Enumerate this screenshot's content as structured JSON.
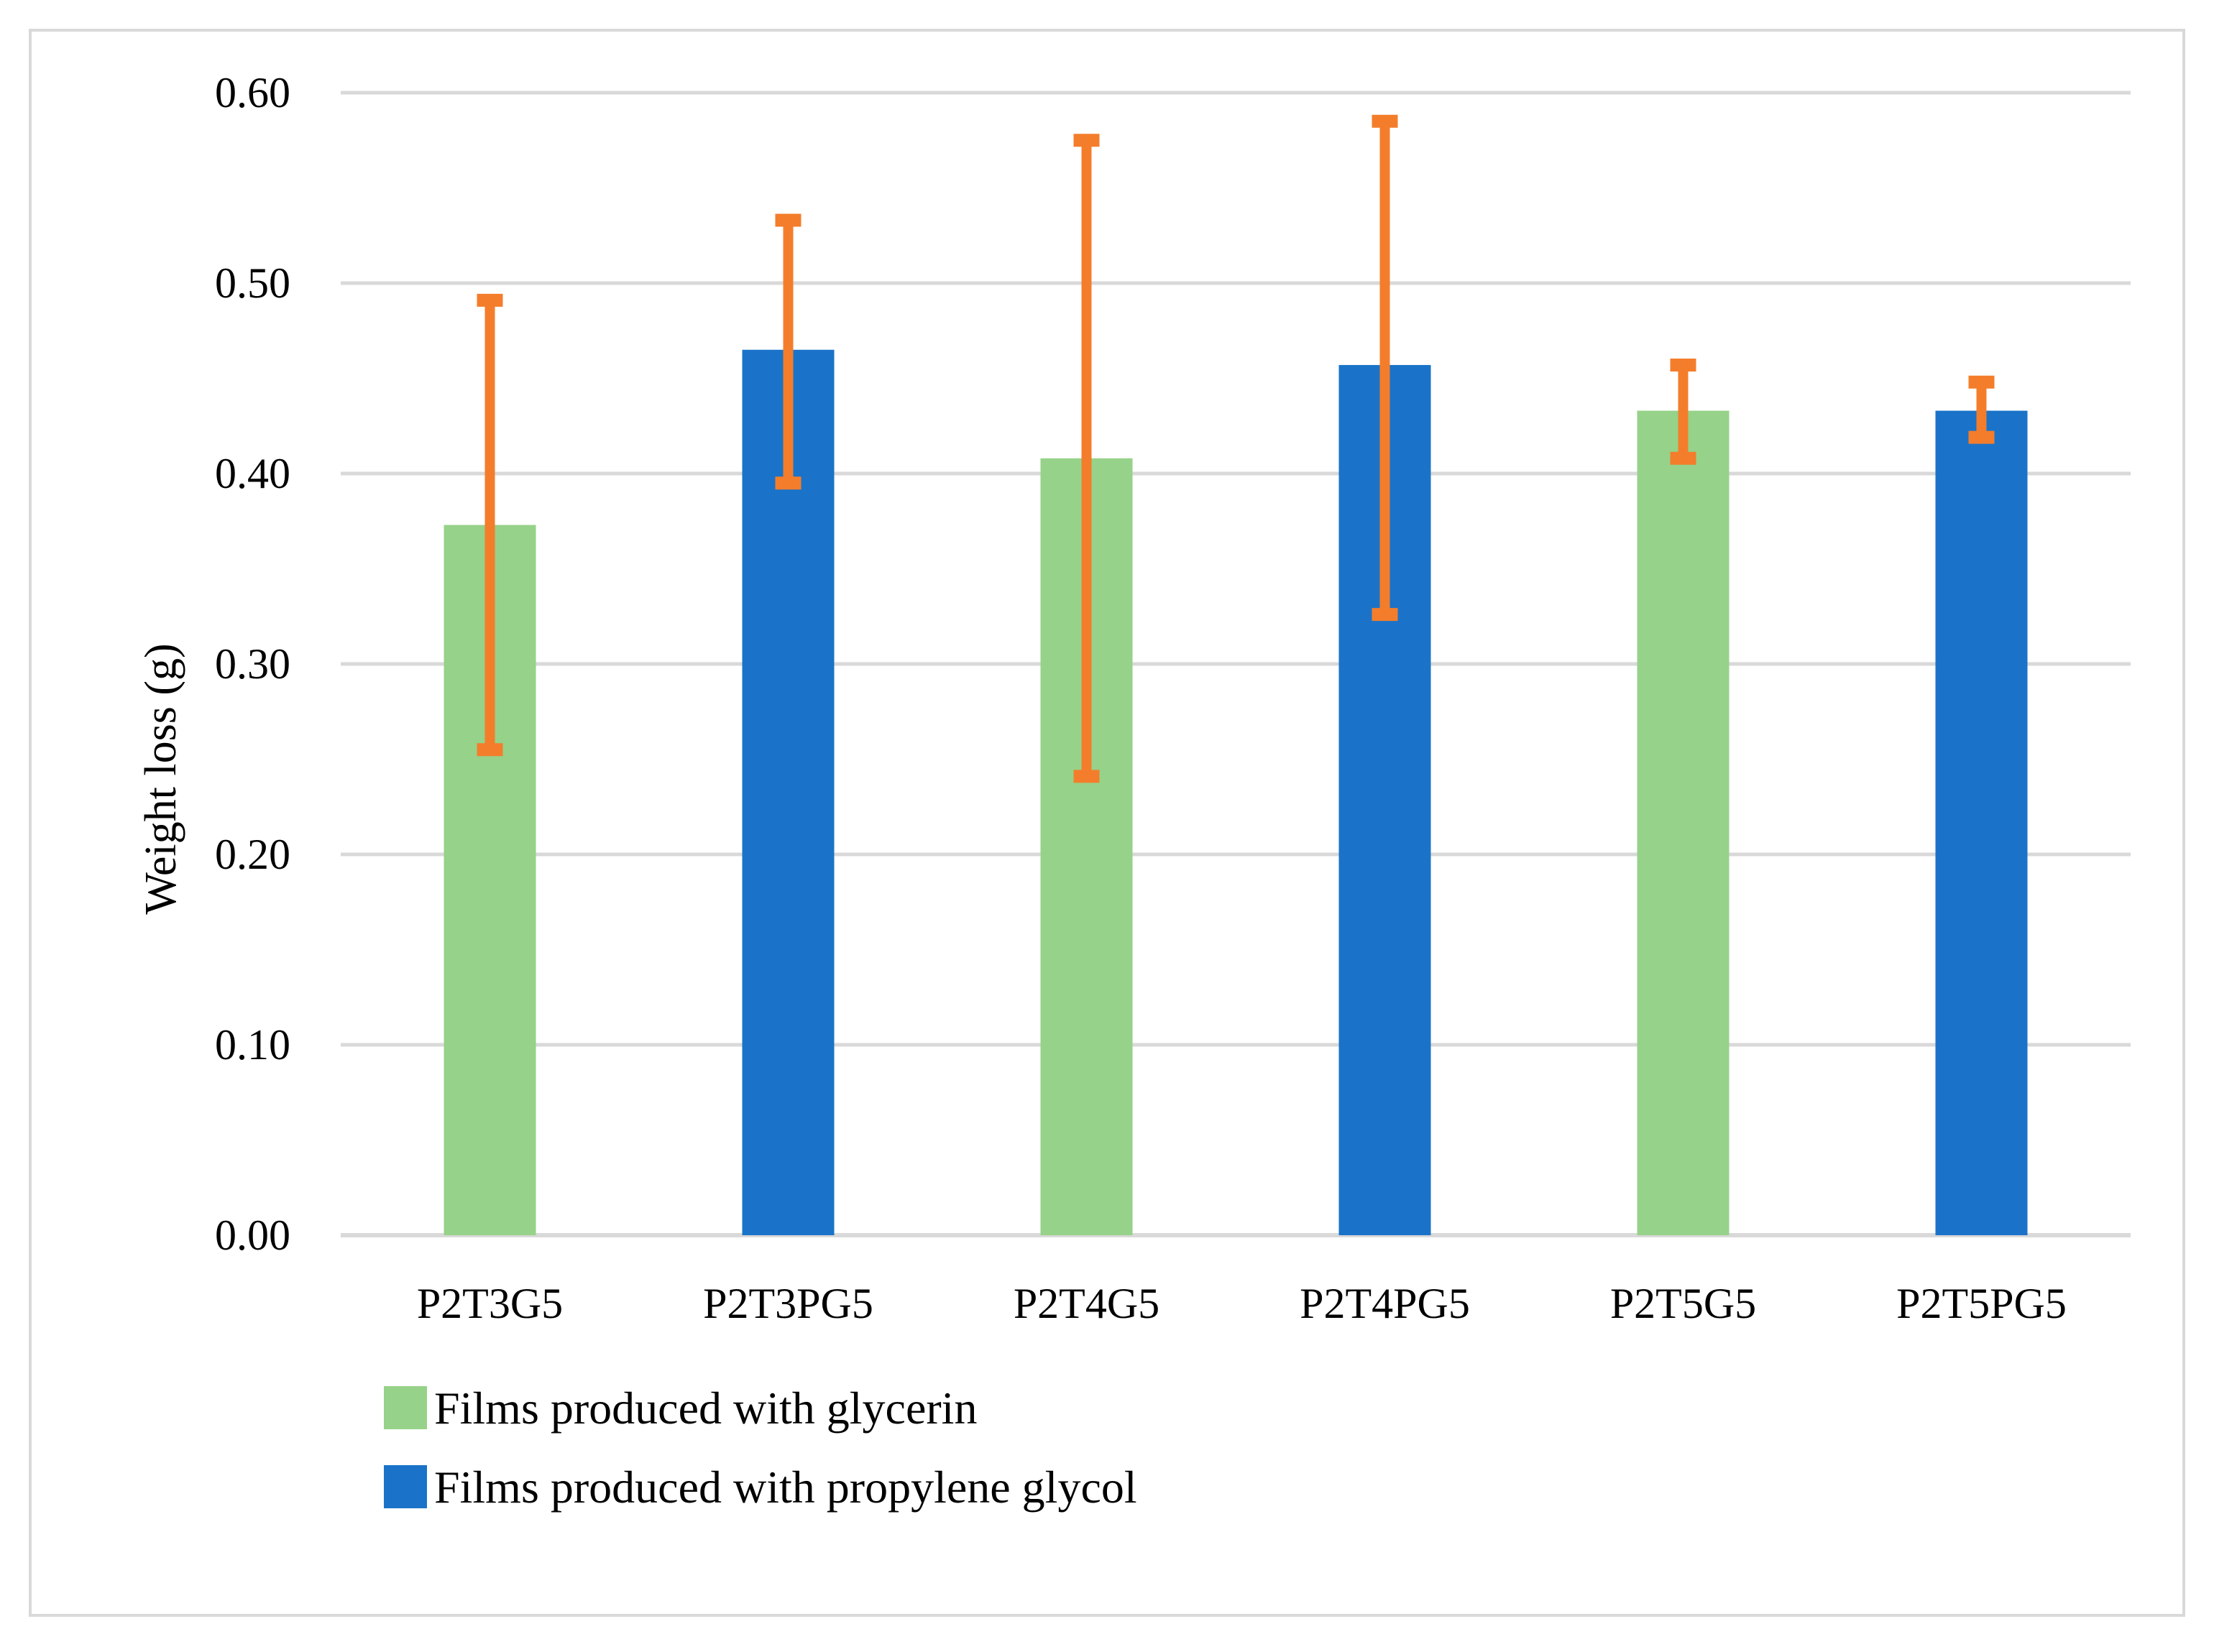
{
  "chart_data": {
    "type": "bar",
    "title": "",
    "xlabel": "",
    "ylabel": "Weight loss (g)",
    "ylim": [
      0,
      0.6
    ],
    "ytick_step": 0.1,
    "yticks": [
      "0.00",
      "0.10",
      "0.20",
      "0.30",
      "0.40",
      "0.50",
      "0.60"
    ],
    "grid": true,
    "legend_position": "bottom-left",
    "categories": [
      "P2T3G5",
      "P2T3PG5",
      "P2T4G5",
      "P2T4PG5",
      "P2T5G5",
      "P2T5PG5"
    ],
    "values": [
      0.373,
      0.465,
      0.408,
      0.457,
      0.433,
      0.433
    ],
    "error_low": [
      0.255,
      0.395,
      0.241,
      0.326,
      0.408,
      0.419
    ],
    "error_high": [
      0.491,
      0.533,
      0.575,
      0.585,
      0.457,
      0.448
    ],
    "bar_series": [
      "glycerin",
      "propylene",
      "glycerin",
      "propylene",
      "glycerin",
      "propylene"
    ],
    "series": [
      {
        "key": "glycerin",
        "name": "Films produced with glycerin",
        "color": "#96d289"
      },
      {
        "key": "propylene",
        "name": "Films produced with propylene glycol",
        "color": "#1a73c8"
      }
    ],
    "error_color": "#f47d2b",
    "grid_color": "#d9d9d9"
  }
}
